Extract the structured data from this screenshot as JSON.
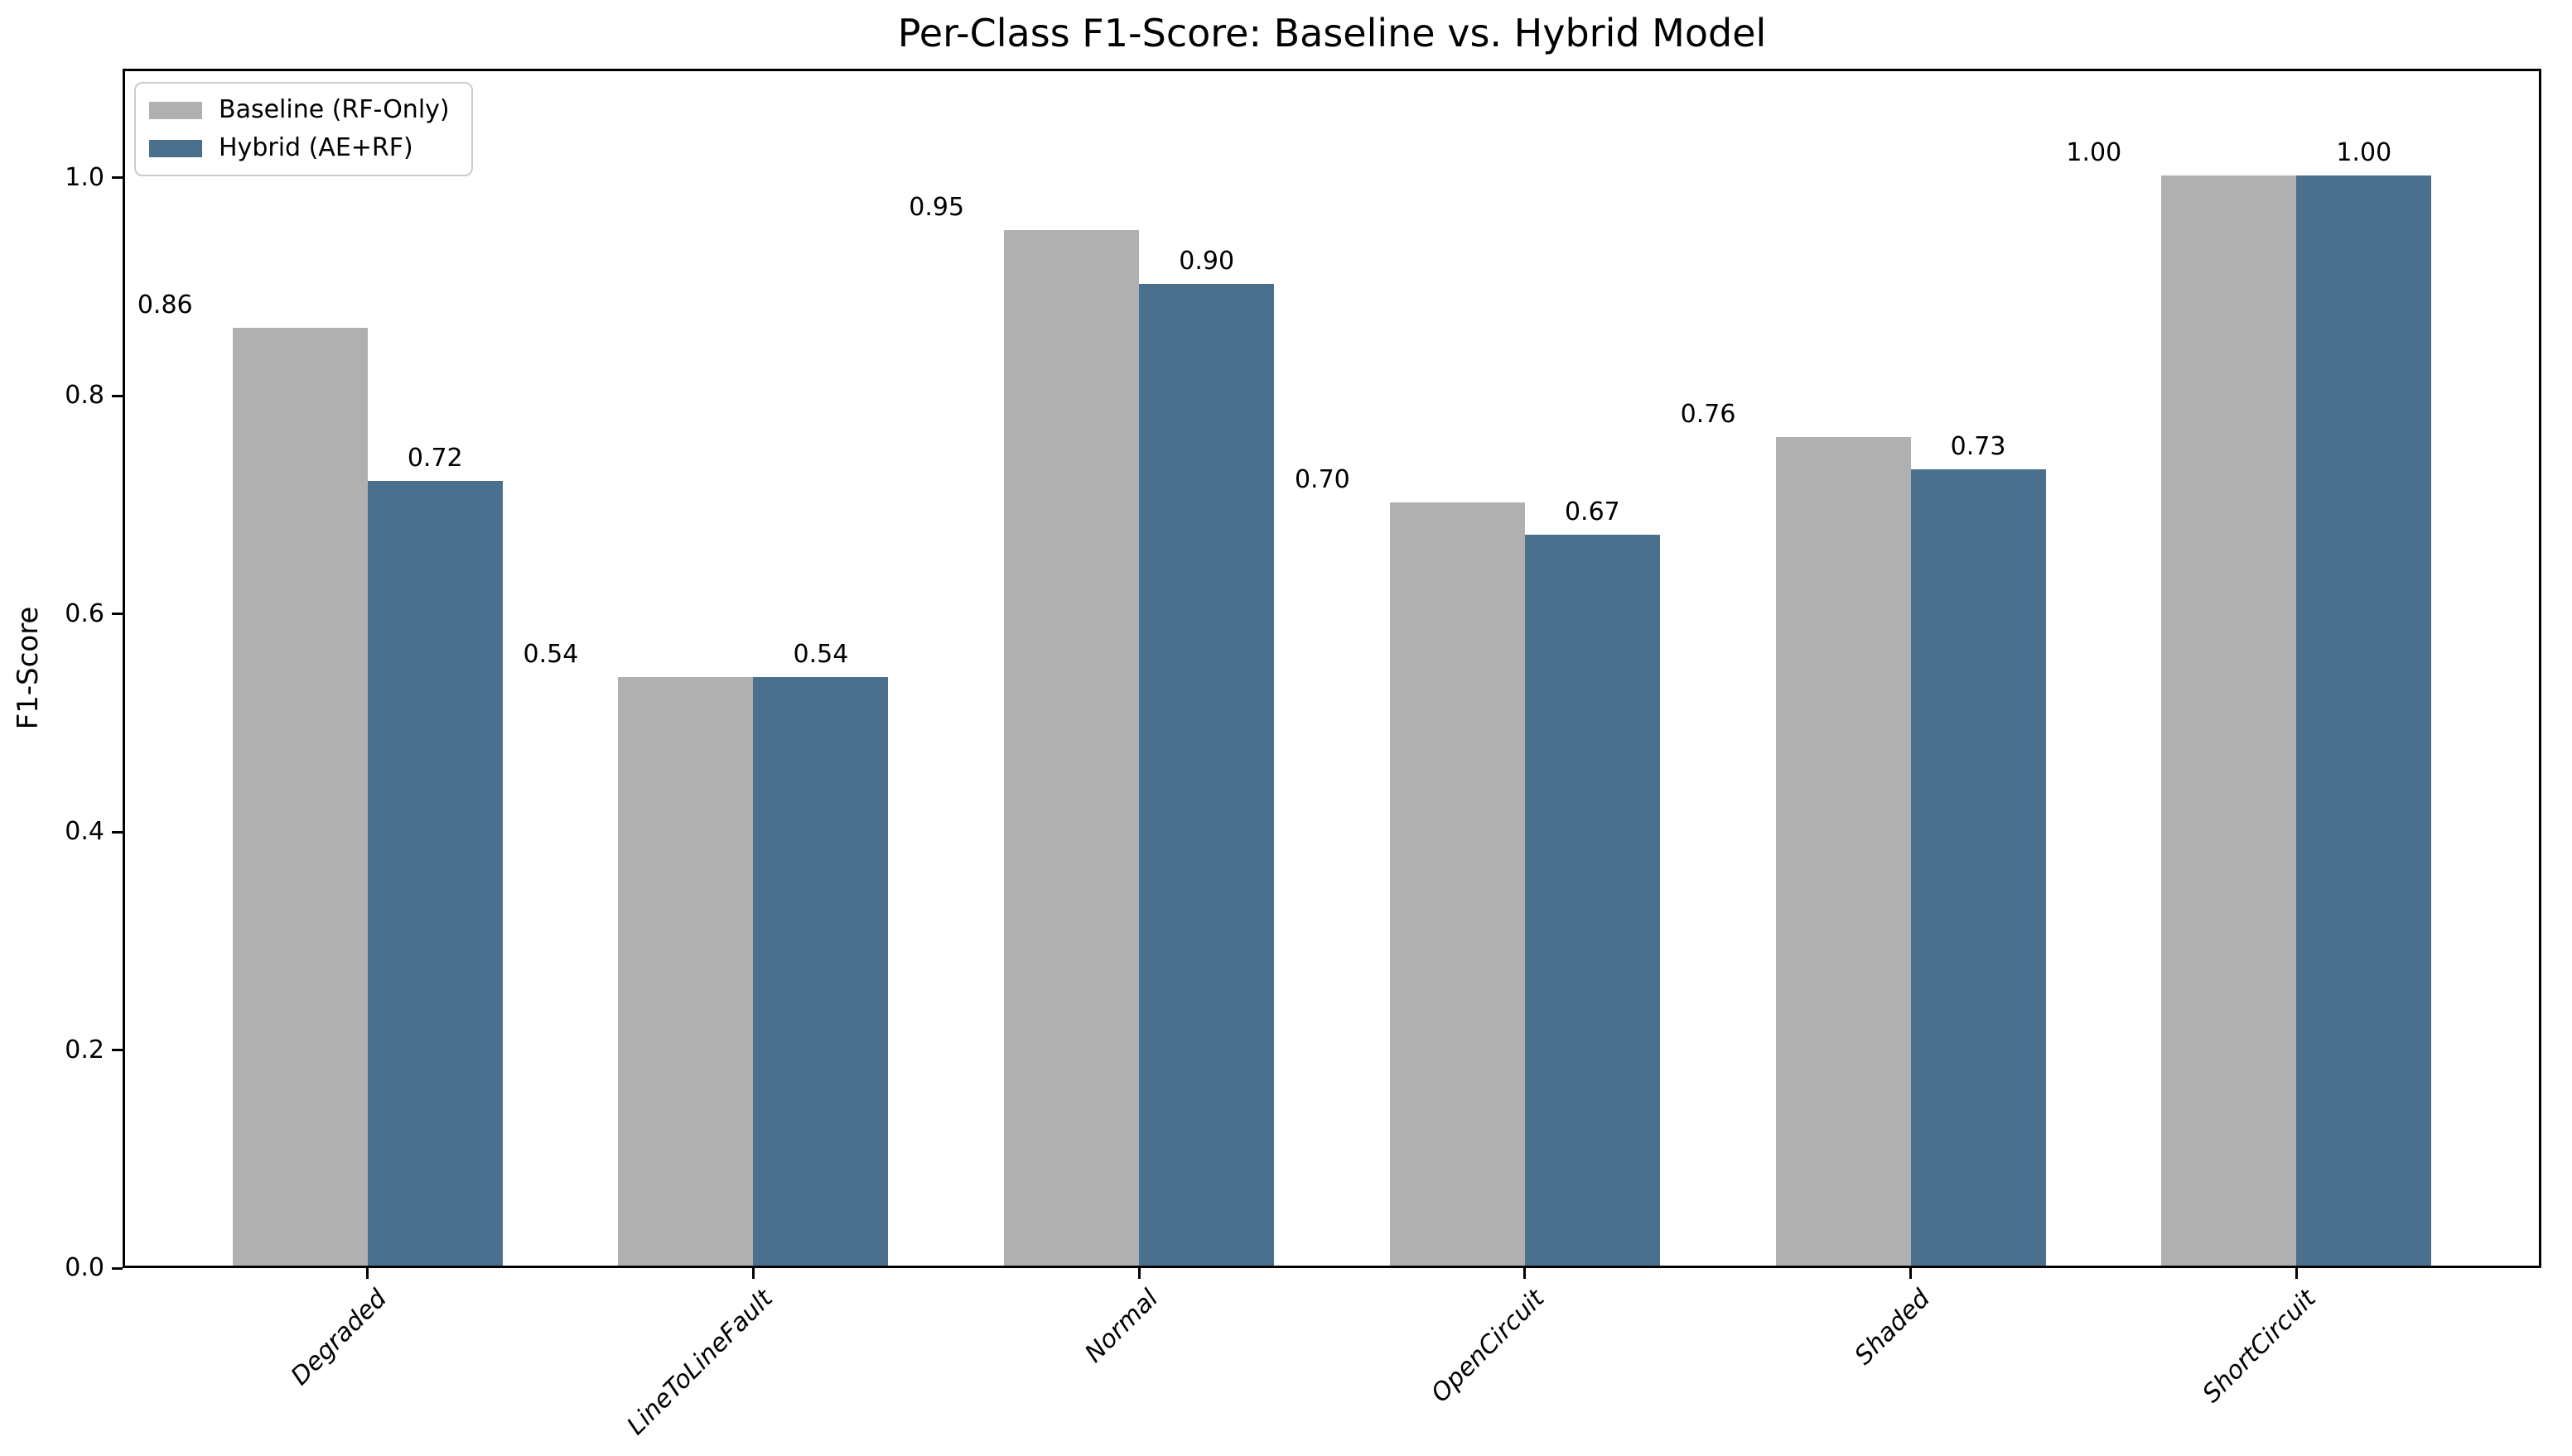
{
  "chart_data": {
    "type": "bar",
    "title": "Per-Class F1-Score: Baseline vs. Hybrid Model",
    "xlabel": "",
    "ylabel": "F1-Score",
    "categories": [
      "Degraded",
      "LineToLineFault",
      "Normal",
      "OpenCircuit",
      "Shaded",
      "ShortCircuit"
    ],
    "series": [
      {
        "name": "Baseline (RF-Only)",
        "color": "#b0b0b0",
        "values": [
          0.86,
          0.54,
          0.95,
          0.7,
          0.76,
          1.0
        ],
        "value_labels": [
          "0.86",
          "0.54",
          "0.95",
          "0.70",
          "0.76",
          "1.00"
        ]
      },
      {
        "name": "Hybrid (AE+RF)",
        "color": "#4b708d",
        "values": [
          0.72,
          0.54,
          0.9,
          0.67,
          0.73,
          1.0
        ],
        "value_labels": [
          "0.72",
          "0.54",
          "0.90",
          "0.67",
          "0.73",
          "1.00"
        ]
      }
    ],
    "ylim": [
      0,
      1.1
    ],
    "yticks": [
      0.0,
      0.2,
      0.4,
      0.6,
      0.8,
      1.0
    ],
    "ytick_labels": [
      "0.0",
      "0.2",
      "0.4",
      "0.6",
      "0.8",
      "1.0"
    ],
    "bar_width_units": 0.35,
    "legend_position": "upper left",
    "grid": false,
    "colors": {
      "spine": "#000000",
      "legend_border": "#cccccc",
      "background": "#ffffff",
      "text": "#000000"
    }
  }
}
